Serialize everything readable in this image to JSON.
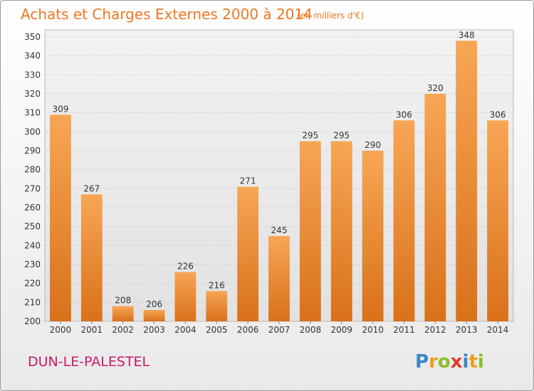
{
  "chart_data": {
    "type": "bar",
    "title": "Achats et Charges Externes 2000 à 2014",
    "unit": "(en milliers d'€)",
    "categories": [
      "2000",
      "2001",
      "2002",
      "2003",
      "2004",
      "2005",
      "2006",
      "2007",
      "2008",
      "2009",
      "2010",
      "2011",
      "2012",
      "2013",
      "2014"
    ],
    "values": [
      309,
      267,
      208,
      206,
      226,
      216,
      271,
      245,
      295,
      295,
      290,
      306,
      320,
      348,
      306
    ],
    "ylim": [
      200,
      350
    ],
    "yticks": [
      200,
      210,
      220,
      230,
      240,
      250,
      260,
      270,
      280,
      290,
      300,
      310,
      320,
      330,
      340,
      350
    ],
    "grid": true,
    "bar_color": "#ee8a2e"
  },
  "place_name": "DUN-LE-PALESTEL",
  "brand": {
    "name": "Proxiti",
    "letters": [
      {
        "ch": "P",
        "color": "#3a86c8"
      },
      {
        "ch": "r",
        "color": "#e8a020"
      },
      {
        "ch": "o",
        "color": "#8cbf2a"
      },
      {
        "ch": "x",
        "color": "#e23a2a"
      },
      {
        "ch": "i",
        "color": "#3a86c8"
      },
      {
        "ch": "t",
        "color": "#e8a020"
      },
      {
        "ch": "i",
        "color": "#8cbf2a"
      }
    ]
  }
}
